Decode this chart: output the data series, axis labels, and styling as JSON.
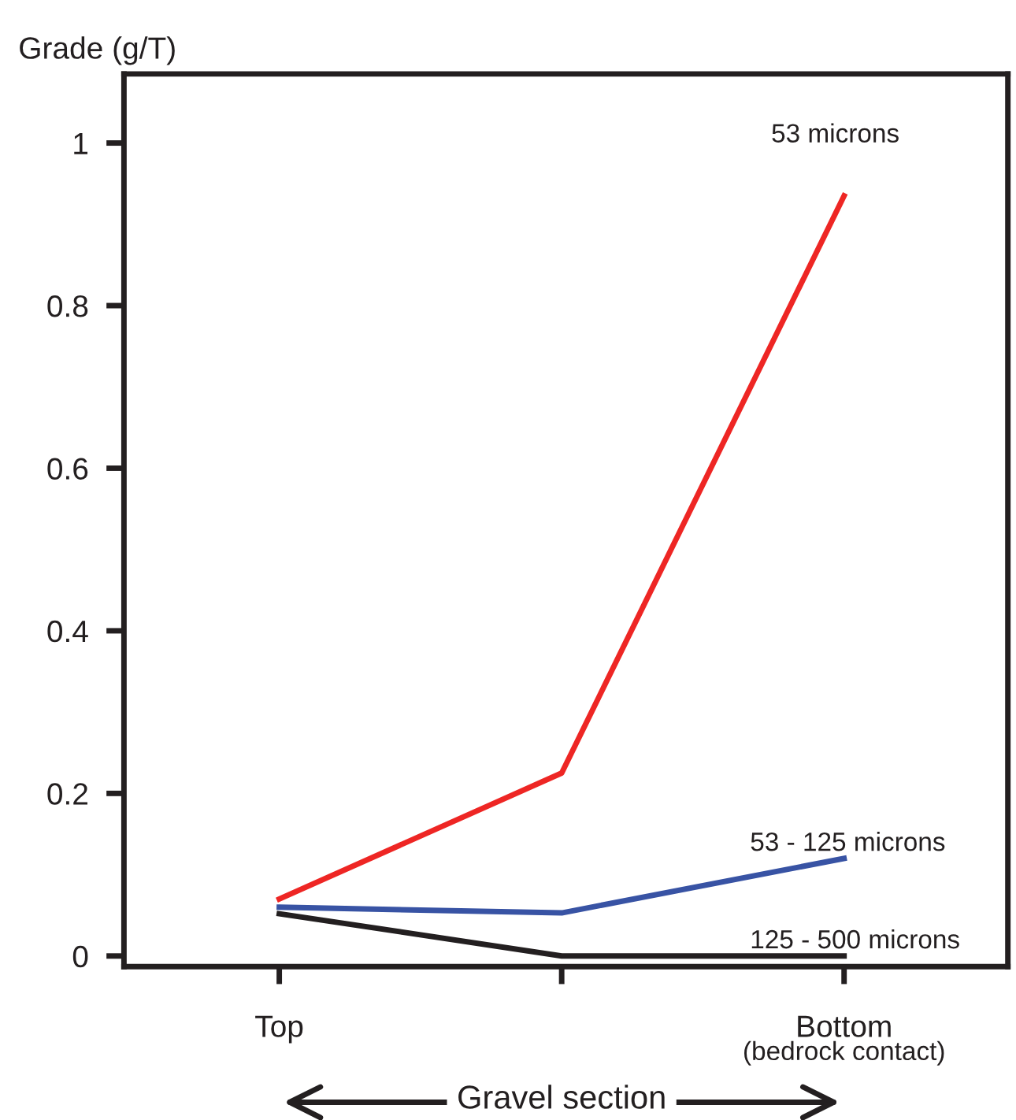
{
  "chart_data": {
    "type": "line",
    "ylabel": "Grade (g/T)",
    "xlabel": "Gravel section",
    "categories": [
      "Top",
      null,
      "Bottom"
    ],
    "series": [
      {
        "name": "53 microns",
        "color": "#ee2624",
        "values": [
          0.07,
          0.225,
          0.935
        ]
      },
      {
        "name": "53 - 125 microns",
        "color": "#3853a4",
        "values": [
          0.06,
          0.053,
          0.12
        ]
      },
      {
        "name": "125 - 500 microns",
        "color": "#231f20",
        "values": [
          0.052,
          0.0,
          0.0
        ]
      }
    ],
    "annotations": [
      "(bedrock contact)"
    ],
    "ylim": [
      -0.013,
      1.085
    ],
    "yticks": [
      0,
      0.2,
      0.4,
      0.6,
      0.8,
      1
    ],
    "grid": false,
    "legend": false,
    "marker": "none",
    "line_style": "solid"
  }
}
